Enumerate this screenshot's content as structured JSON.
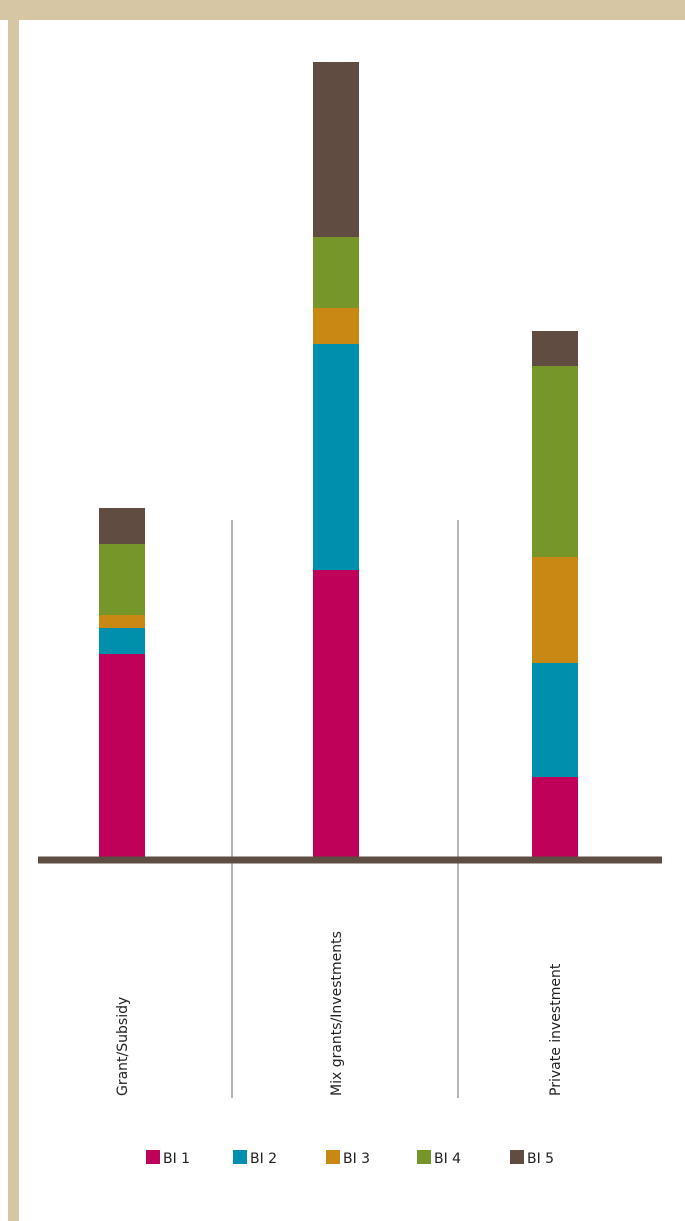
{
  "chart_data": {
    "type": "bar",
    "stacked": true,
    "categories": [
      "Grant/Subsidy",
      "Mix grants/Investments",
      "Private investment"
    ],
    "series": [
      {
        "name": "BI 1",
        "color": "#bf0159",
        "values": [
          206,
          290,
          83
        ]
      },
      {
        "name": "BI 2",
        "color": "#008fac",
        "values": [
          26,
          226,
          114
        ]
      },
      {
        "name": "BI 3",
        "color": "#c98814",
        "values": [
          13,
          36,
          106
        ]
      },
      {
        "name": "BI 4",
        "color": "#77962a",
        "values": [
          71,
          71,
          191
        ]
      },
      {
        "name": "BI 5",
        "color": "#604c40",
        "values": [
          36,
          175,
          35
        ]
      }
    ],
    "ylim": [
      0,
      800
    ],
    "grid": false,
    "legend": "bottom",
    "title": "",
    "xlabel": "",
    "ylabel": ""
  }
}
